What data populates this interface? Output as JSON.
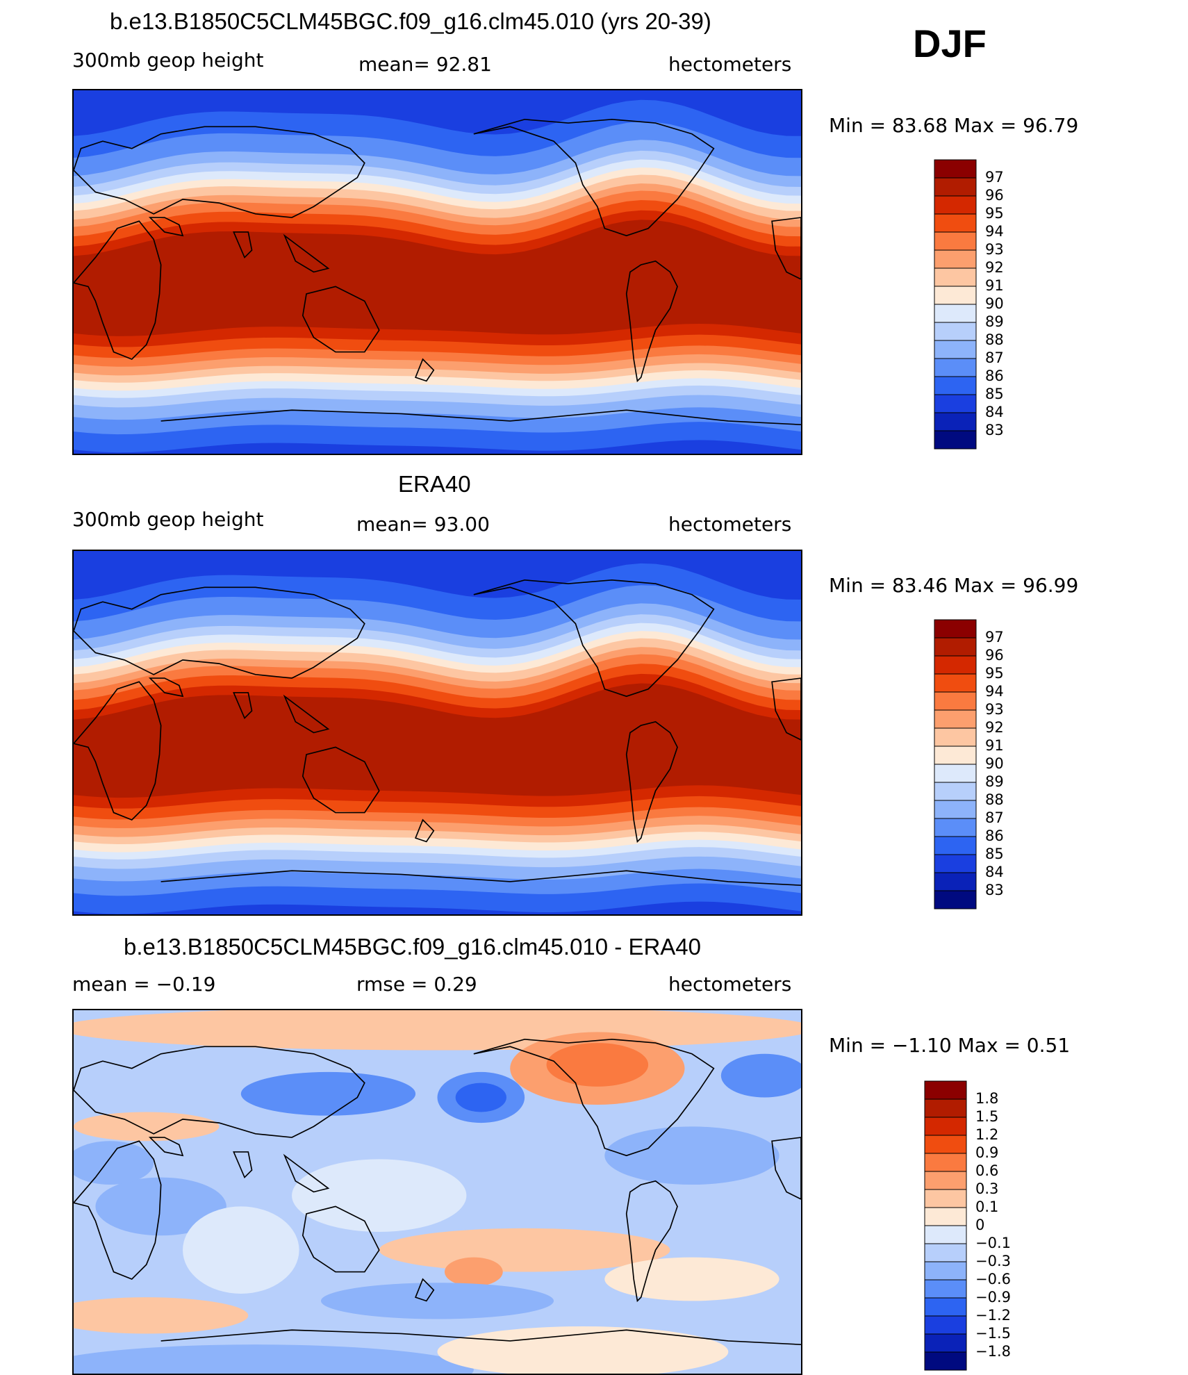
{
  "season": "DJF",
  "panels": [
    {
      "title": "b.e13.B1850C5CLM45BGC.f09_g16.clm45.010 (yrs 20-39)",
      "left_label": "300mb  geop  height",
      "center_label": "mean=   92.81",
      "units": "hectometers",
      "minmax": "Min  =    83.68  Max  =    96.79",
      "colorbar_labels": [
        "97",
        "96",
        "95",
        "94",
        "93",
        "92",
        "91",
        "90",
        "89",
        "88",
        "87",
        "86",
        "85",
        "84",
        "83"
      ],
      "colorbar_colors": [
        "#8b0000",
        "#b11c00",
        "#d42800",
        "#f04d10",
        "#fa7a40",
        "#fc9f6e",
        "#fdc6a2",
        "#fde9d6",
        "#dde9fb",
        "#b7cffb",
        "#8db3fa",
        "#5b8ef8",
        "#2d64f2",
        "#1a3fe0",
        "#0a22b8",
        "#000a80"
      ],
      "field": "model"
    },
    {
      "title": "ERA40",
      "left_label": "300mb  geop  height",
      "center_label": "mean=   93.00",
      "units": "hectometers",
      "minmax": "Min  =    83.46  Max  =    96.99",
      "colorbar_labels": [
        "97",
        "96",
        "95",
        "94",
        "93",
        "92",
        "91",
        "90",
        "89",
        "88",
        "87",
        "86",
        "85",
        "84",
        "83"
      ],
      "colorbar_colors": [
        "#8b0000",
        "#b11c00",
        "#d42800",
        "#f04d10",
        "#fa7a40",
        "#fc9f6e",
        "#fdc6a2",
        "#fde9d6",
        "#dde9fb",
        "#b7cffb",
        "#8db3fa",
        "#5b8ef8",
        "#2d64f2",
        "#1a3fe0",
        "#0a22b8",
        "#000a80"
      ],
      "field": "obs"
    },
    {
      "title": "b.e13.B1850C5CLM45BGC.f09_g16.clm45.010 - ERA40",
      "left_label": "mean  =    −0.19",
      "center_label": "rmse  =     0.29",
      "units": "hectometers",
      "minmax": "Min  =   −1.10  Max  =     0.51",
      "colorbar_labels": [
        "1.8",
        "1.5",
        "1.2",
        "0.9",
        "0.6",
        "0.3",
        "0.1",
        "0",
        "−0.1",
        "−0.3",
        "−0.6",
        "−0.9",
        "−1.2",
        "−1.5",
        "−1.8"
      ],
      "colorbar_colors": [
        "#8b0000",
        "#b11c00",
        "#d42800",
        "#f04d10",
        "#fa7a40",
        "#fc9f6e",
        "#fdc6a2",
        "#fde9d6",
        "#dde9fb",
        "#b7cffb",
        "#8db3fa",
        "#5b8ef8",
        "#2d64f2",
        "#1a3fe0",
        "#0a22b8",
        "#000a80"
      ],
      "field": "diff"
    }
  ]
}
